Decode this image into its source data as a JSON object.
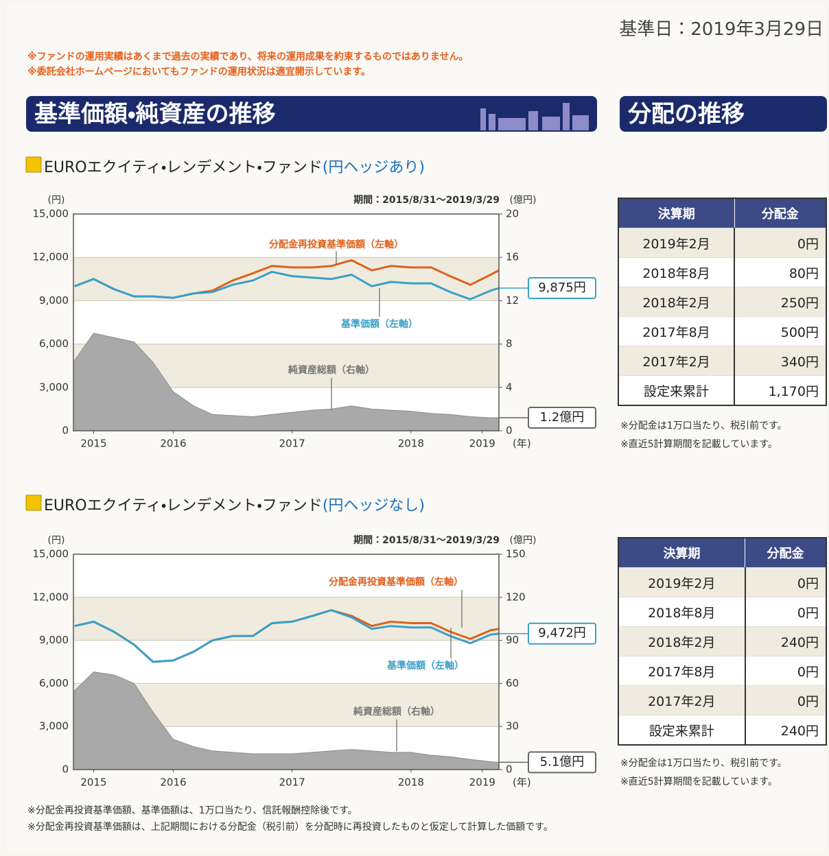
{
  "header": {
    "date": "基準日：2019年3月29日",
    "notes": [
      "※ファンドの運用実績はあくまで過去の実績であり、将来の運用成果を約束するものではありません。",
      "※委託会社ホームページにおいてもファンドの運用状況は適宜開示しています。"
    ]
  },
  "sections": {
    "performance_title": "基準価額・純資産の推移",
    "distribution_title": "分配の推移"
  },
  "funds": [
    {
      "name": "EUROエクイティ・レンデメント・ファンド",
      "variant": "(円ヘッジあり)",
      "table": {
        "columns": [
          "決算期",
          "分配金"
        ],
        "rows": [
          [
            "2019年2月",
            "0円"
          ],
          [
            "2018年8月",
            "80円"
          ],
          [
            "2018年2月",
            "250円"
          ],
          [
            "2017年8月",
            "500円"
          ],
          [
            "2017年2月",
            "340円"
          ],
          [
            "設定来累計",
            "1,170円"
          ]
        ]
      },
      "table_notes": [
        "※分配金は1万口当たり、税引前です。",
        "※直近5計算期間を記載しています。"
      ]
    },
    {
      "name": "EUROエクイティ・レンデメント・ファンド",
      "variant": "(円ヘッジなし)",
      "table": {
        "columns": [
          "決算期",
          "分配金"
        ],
        "rows": [
          [
            "2019年2月",
            "0円"
          ],
          [
            "2018年8月",
            "0円"
          ],
          [
            "2018年2月",
            "240円"
          ],
          [
            "2017年8月",
            "0円"
          ],
          [
            "2017年2月",
            "0円"
          ],
          [
            "設定来累計",
            "240円"
          ]
        ]
      },
      "table_notes": [
        "※分配金は1万口当たり、税引前です。",
        "※直近5計算期間を記載しています。"
      ]
    }
  ],
  "chart_data": [
    {
      "type": "line",
      "period": "期間：2015/8/31～2019/3/29",
      "y_unit": "(円)",
      "y2_unit": "(億円)",
      "x_unit": "(年)",
      "grid": true,
      "x": [
        2015.67,
        2015.83,
        2016.0,
        2016.17,
        2016.33,
        2016.5,
        2016.67,
        2016.83,
        2017.0,
        2017.17,
        2017.33,
        2017.5,
        2017.67,
        2017.83,
        2018.0,
        2018.17,
        2018.33,
        2018.5,
        2018.67,
        2018.83,
        2019.0,
        2019.17,
        2019.24
      ],
      "xlim": [
        2015.66,
        2019.24
      ],
      "xticks": [
        {
          "value": 2015.83,
          "label": "2015"
        },
        {
          "value": 2016.5,
          "label": "2016"
        },
        {
          "value": 2017.5,
          "label": "2017"
        },
        {
          "value": 2018.5,
          "label": "2018"
        },
        {
          "value": 2019.1,
          "label": "2019"
        }
      ],
      "ylim": [
        0,
        15000
      ],
      "yticks": [
        0,
        {
          "value": 3000,
          "label": "3,000"
        },
        {
          "value": 6000,
          "label": "6,000"
        },
        {
          "value": 9000,
          "label": "9,000"
        },
        {
          "value": 12000,
          "label": "12,000"
        },
        {
          "value": 15000,
          "label": "15,000"
        }
      ],
      "y2lim": [
        0,
        20
      ],
      "y2ticks": [
        0,
        4,
        8,
        12,
        16,
        20
      ],
      "series": [
        {
          "name": "分配金再投資基準価額（左軸）",
          "color": "#e0601a",
          "values": [
            10000,
            10500,
            9800,
            9300,
            9300,
            9200,
            9500,
            9700,
            10400,
            10900,
            11400,
            11300,
            11300,
            11400,
            11800,
            11100,
            11400,
            11300,
            11300,
            10700,
            10100,
            10800,
            11100
          ]
        },
        {
          "name": "基準価額（左軸）",
          "color": "#3aa0c8",
          "values": [
            10000,
            10500,
            9800,
            9300,
            9300,
            9200,
            9500,
            9600,
            10100,
            10400,
            11000,
            10700,
            10600,
            10500,
            10800,
            10000,
            10300,
            10200,
            10200,
            9600,
            9100,
            9700,
            9875
          ]
        },
        {
          "name": "純資産総額（右軸）",
          "color": "#a9a9a9",
          "type": "area",
          "axis": "y2",
          "values": [
            6.5,
            9.0,
            8.6,
            8.2,
            6.3,
            3.6,
            2.3,
            1.5,
            1.4,
            1.3,
            1.5,
            1.7,
            1.9,
            2.0,
            2.3,
            2.0,
            1.9,
            1.8,
            1.6,
            1.5,
            1.3,
            1.2,
            1.2
          ]
        }
      ],
      "annotations": [
        {
          "text": "9,875円",
          "value": 9875,
          "axis": "y"
        },
        {
          "text": "1.2億円",
          "value": 1.2,
          "axis": "y2"
        }
      ]
    },
    {
      "type": "line",
      "period": "期間：2015/8/31～2019/3/29",
      "y_unit": "(円)",
      "y2_unit": "(億円)",
      "x_unit": "(年)",
      "grid": true,
      "x": [
        2015.67,
        2015.83,
        2016.0,
        2016.17,
        2016.33,
        2016.5,
        2016.67,
        2016.83,
        2017.0,
        2017.17,
        2017.33,
        2017.5,
        2017.67,
        2017.83,
        2018.0,
        2018.17,
        2018.33,
        2018.5,
        2018.67,
        2018.83,
        2019.0,
        2019.17,
        2019.24
      ],
      "xlim": [
        2015.66,
        2019.24
      ],
      "xticks": [
        {
          "value": 2015.83,
          "label": "2015"
        },
        {
          "value": 2016.5,
          "label": "2016"
        },
        {
          "value": 2017.5,
          "label": "2017"
        },
        {
          "value": 2018.5,
          "label": "2018"
        },
        {
          "value": 2019.1,
          "label": "2019"
        }
      ],
      "ylim": [
        0,
        15000
      ],
      "yticks": [
        0,
        {
          "value": 3000,
          "label": "3,000"
        },
        {
          "value": 6000,
          "label": "6,000"
        },
        {
          "value": 9000,
          "label": "9,000"
        },
        {
          "value": 12000,
          "label": "12,000"
        },
        {
          "value": 15000,
          "label": "15,000"
        }
      ],
      "y2lim": [
        0,
        150
      ],
      "y2ticks": [
        0,
        30,
        60,
        90,
        120,
        150
      ],
      "series": [
        {
          "name": "分配金再投資基準価額（左軸）",
          "color": "#e0601a",
          "values": [
            10000,
            10300,
            9600,
            8700,
            7500,
            7600,
            8200,
            9000,
            9300,
            9300,
            10200,
            10300,
            10700,
            11100,
            10700,
            10000,
            10300,
            10200,
            10200,
            9600,
            9100,
            9700,
            9800
          ]
        },
        {
          "name": "基準価額（左軸）",
          "color": "#3aa0c8",
          "values": [
            10000,
            10300,
            9600,
            8700,
            7500,
            7600,
            8200,
            9000,
            9300,
            9300,
            10200,
            10300,
            10700,
            11100,
            10600,
            9800,
            10000,
            9900,
            9900,
            9300,
            8800,
            9400,
            9472
          ]
        },
        {
          "name": "純資産総額（右軸）",
          "color": "#a9a9a9",
          "type": "area",
          "axis": "y2",
          "values": [
            55,
            68,
            66,
            60,
            40,
            21,
            16,
            13,
            12,
            11,
            11,
            11,
            12,
            13,
            14,
            13,
            12,
            12,
            10,
            9,
            7,
            5.5,
            5.1
          ]
        }
      ],
      "annotations": [
        {
          "text": "9,472円",
          "value": 9472,
          "axis": "y"
        },
        {
          "text": "5.1億円",
          "value": 5.1,
          "axis": "y2"
        }
      ]
    }
  ],
  "footnotes": [
    "※分配金再投資基準価額、基準価額は、1万口当たり、信託報酬控除後です。",
    "※分配金再投資基準価額は、上記期間における分配金（税引前）を分配時に再投資したものと仮定して計算した価額です。"
  ]
}
